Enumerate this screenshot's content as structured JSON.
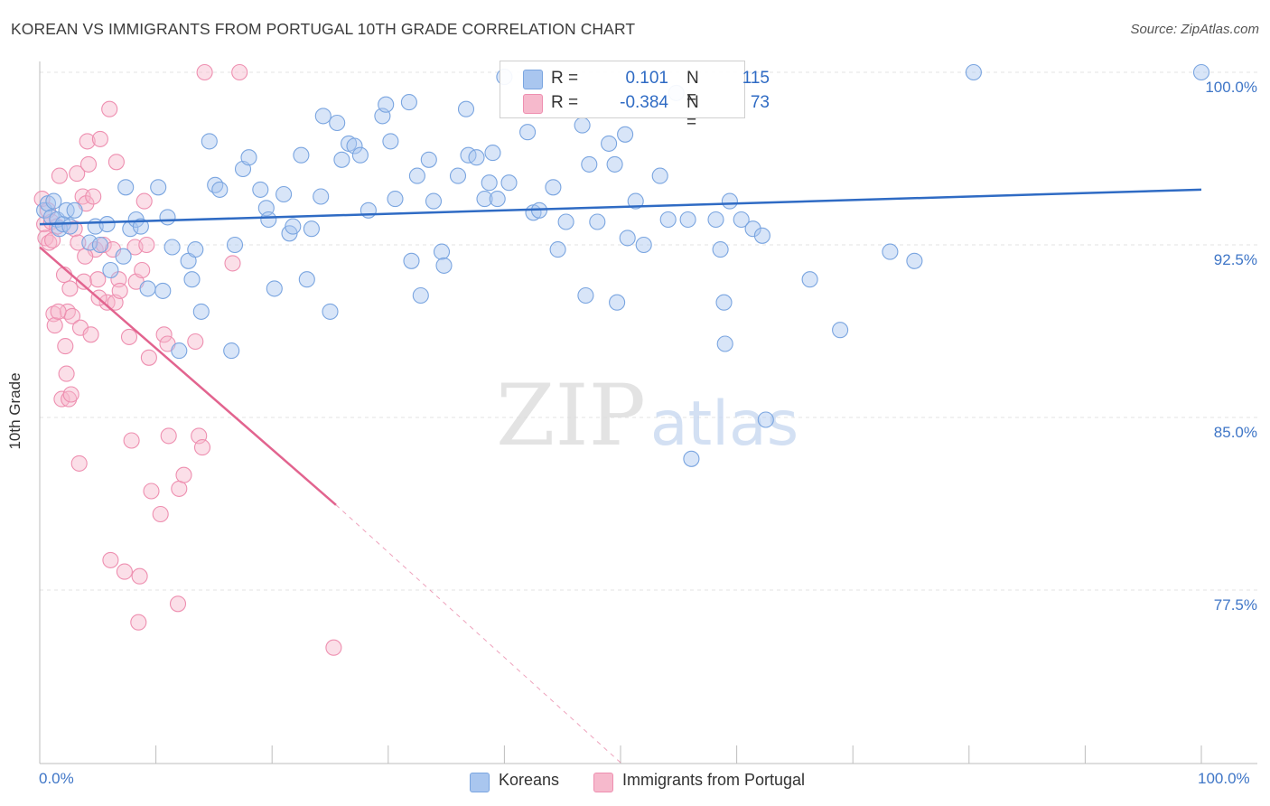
{
  "header": {
    "title": "KOREAN VS IMMIGRANTS FROM PORTUGAL 10TH GRADE CORRELATION CHART",
    "source": "Source: ZipAtlas.com"
  },
  "legend": {
    "rows": [
      {
        "r_label": "R =",
        "r_value": "0.101",
        "n_label": "N =",
        "n_value": "115",
        "color": "#a9c6ef"
      },
      {
        "r_label": "R =",
        "r_value": "-0.384",
        "n_label": "N =",
        "n_value": "73",
        "color": "#f6b9cc"
      }
    ]
  },
  "bottom_legend": [
    {
      "label": "Koreans",
      "color": "#a9c6ef"
    },
    {
      "label": "Immigrants from Portugal",
      "color": "#f6b9cc"
    }
  ],
  "watermark": {
    "part1": "ZIP",
    "part2": "atlas"
  },
  "chart_data": {
    "type": "scatter",
    "title": "KOREAN VS IMMIGRANTS FROM PORTUGAL 10TH GRADE CORRELATION CHART",
    "xlabel": "",
    "ylabel": "10th Grade",
    "xlim": [
      0,
      100
    ],
    "ylim": [
      70.0,
      100.0
    ],
    "x_tick_labels": [
      "0.0%",
      "100.0%"
    ],
    "y_ticks": [
      {
        "value": 100.0,
        "label": "100.0%"
      },
      {
        "value": 92.5,
        "label": "92.5%"
      },
      {
        "value": 85.0,
        "label": "85.0%"
      },
      {
        "value": 77.5,
        "label": "77.5%"
      }
    ],
    "grid": true,
    "legend_position": "top-center",
    "colors": {
      "koreans_fill": "#a9c6ef",
      "koreans_stroke": "#7aa5e0",
      "koreans_line": "#2f6bc4",
      "portugal_fill": "#f6b9cc",
      "portugal_stroke": "#ee8fb0",
      "portugal_line": "#e2648f"
    },
    "series": [
      {
        "name": "Koreans",
        "stats": {
          "R": 0.101,
          "N": 115
        },
        "trend": {
          "x": [
            0,
            100
          ],
          "y": [
            93.4,
            94.9
          ]
        },
        "points": [
          [
            0.4,
            94.0
          ],
          [
            0.7,
            94.3
          ],
          [
            1.0,
            93.7
          ],
          [
            1.2,
            94.4
          ],
          [
            1.5,
            93.6
          ],
          [
            1.7,
            93.2
          ],
          [
            2.0,
            93.4
          ],
          [
            2.3,
            94.0
          ],
          [
            2.6,
            93.3
          ],
          [
            3.0,
            94.0
          ],
          [
            4.3,
            92.6
          ],
          [
            4.8,
            93.3
          ],
          [
            5.2,
            92.5
          ],
          [
            5.8,
            93.4
          ],
          [
            6.1,
            91.4
          ],
          [
            7.2,
            92.0
          ],
          [
            7.8,
            93.2
          ],
          [
            8.3,
            93.6
          ],
          [
            8.7,
            93.3
          ],
          [
            9.3,
            90.6
          ],
          [
            10.2,
            95.0
          ],
          [
            10.6,
            90.5
          ],
          [
            11.0,
            93.7
          ],
          [
            11.4,
            92.4
          ],
          [
            12.0,
            87.9
          ],
          [
            12.8,
            91.8
          ],
          [
            13.1,
            91.0
          ],
          [
            13.4,
            92.3
          ],
          [
            13.9,
            89.6
          ],
          [
            14.6,
            97.0
          ],
          [
            15.1,
            95.1
          ],
          [
            15.5,
            94.9
          ],
          [
            16.5,
            87.9
          ],
          [
            16.8,
            92.5
          ],
          [
            17.5,
            95.8
          ],
          [
            18.0,
            96.3
          ],
          [
            19.0,
            94.9
          ],
          [
            19.5,
            94.1
          ],
          [
            19.7,
            93.6
          ],
          [
            20.2,
            90.6
          ],
          [
            21.0,
            94.7
          ],
          [
            21.5,
            93.0
          ],
          [
            21.8,
            93.3
          ],
          [
            22.5,
            96.4
          ],
          [
            23.0,
            91.0
          ],
          [
            23.4,
            93.2
          ],
          [
            24.2,
            94.6
          ],
          [
            24.4,
            98.1
          ],
          [
            25.0,
            89.6
          ],
          [
            25.6,
            97.8
          ],
          [
            26.0,
            96.2
          ],
          [
            26.6,
            96.9
          ],
          [
            27.1,
            96.8
          ],
          [
            27.6,
            96.4
          ],
          [
            28.3,
            94.0
          ],
          [
            29.5,
            98.1
          ],
          [
            29.8,
            98.6
          ],
          [
            30.2,
            97.0
          ],
          [
            30.6,
            94.5
          ],
          [
            31.8,
            98.7
          ],
          [
            32.0,
            91.8
          ],
          [
            32.5,
            95.5
          ],
          [
            32.8,
            90.3
          ],
          [
            33.5,
            96.2
          ],
          [
            33.9,
            94.4
          ],
          [
            34.6,
            92.2
          ],
          [
            34.8,
            91.6
          ],
          [
            36.0,
            95.5
          ],
          [
            36.7,
            98.4
          ],
          [
            36.9,
            96.4
          ],
          [
            37.6,
            96.3
          ],
          [
            38.3,
            94.5
          ],
          [
            38.7,
            95.2
          ],
          [
            39.0,
            96.5
          ],
          [
            39.4,
            94.5
          ],
          [
            40.0,
            99.8
          ],
          [
            40.4,
            95.2
          ],
          [
            42.0,
            97.4
          ],
          [
            42.5,
            93.9
          ],
          [
            43.0,
            94.0
          ],
          [
            44.2,
            95.0
          ],
          [
            45.3,
            93.5
          ],
          [
            46.7,
            97.7
          ],
          [
            47.0,
            90.3
          ],
          [
            47.3,
            96.0
          ],
          [
            48.0,
            93.5
          ],
          [
            49.0,
            96.9
          ],
          [
            49.5,
            96.0
          ],
          [
            49.7,
            90.0
          ],
          [
            50.4,
            97.3
          ],
          [
            50.6,
            92.8
          ],
          [
            51.3,
            94.4
          ],
          [
            52.0,
            92.5
          ],
          [
            53.4,
            95.5
          ],
          [
            54.1,
            93.6
          ],
          [
            54.8,
            99.1
          ],
          [
            55.8,
            93.6
          ],
          [
            58.2,
            93.6
          ],
          [
            58.6,
            92.3
          ],
          [
            58.9,
            90.0
          ],
          [
            59.0,
            88.2
          ],
          [
            59.4,
            94.4
          ],
          [
            60.4,
            93.6
          ],
          [
            61.4,
            93.2
          ],
          [
            62.2,
            92.9
          ],
          [
            62.5,
            84.9
          ],
          [
            66.3,
            91.0
          ],
          [
            68.9,
            88.8
          ],
          [
            73.2,
            92.2
          ],
          [
            75.3,
            91.8
          ],
          [
            100.0,
            100.0
          ],
          [
            80.4,
            100.0
          ],
          [
            56.1,
            83.2
          ],
          [
            44.6,
            92.3
          ],
          [
            7.4,
            95.0
          ]
        ]
      },
      {
        "name": "Immigrants from Portugal",
        "stats": {
          "R": -0.384,
          "N": 73
        },
        "trend": {
          "x": [
            0,
            25.5
          ],
          "y": [
            92.4,
            81.2
          ]
        },
        "trend_dashed": {
          "x": [
            25.5,
            50
          ],
          "y": [
            81.2,
            70.0
          ]
        },
        "points": [
          [
            0.2,
            94.5
          ],
          [
            0.4,
            93.4
          ],
          [
            0.5,
            92.8
          ],
          [
            0.7,
            94.0
          ],
          [
            0.8,
            92.6
          ],
          [
            1.0,
            93.5
          ],
          [
            1.1,
            92.7
          ],
          [
            1.2,
            89.5
          ],
          [
            1.3,
            89.0
          ],
          [
            1.5,
            93.3
          ],
          [
            1.7,
            95.5
          ],
          [
            1.9,
            85.8
          ],
          [
            2.1,
            91.2
          ],
          [
            2.2,
            88.1
          ],
          [
            2.3,
            86.9
          ],
          [
            2.4,
            89.6
          ],
          [
            2.5,
            85.8
          ],
          [
            2.6,
            90.6
          ],
          [
            2.8,
            89.4
          ],
          [
            3.0,
            93.2
          ],
          [
            3.2,
            95.6
          ],
          [
            3.3,
            92.6
          ],
          [
            3.4,
            83.0
          ],
          [
            3.5,
            88.9
          ],
          [
            3.7,
            94.6
          ],
          [
            3.8,
            90.9
          ],
          [
            4.0,
            94.3
          ],
          [
            4.1,
            97.0
          ],
          [
            4.2,
            96.0
          ],
          [
            4.4,
            88.6
          ],
          [
            4.6,
            94.6
          ],
          [
            4.8,
            92.3
          ],
          [
            5.0,
            91.0
          ],
          [
            5.2,
            97.1
          ],
          [
            5.5,
            92.5
          ],
          [
            5.8,
            90.0
          ],
          [
            6.0,
            98.4
          ],
          [
            6.1,
            78.8
          ],
          [
            6.3,
            92.3
          ],
          [
            6.5,
            90.0
          ],
          [
            6.6,
            96.1
          ],
          [
            6.8,
            91.0
          ],
          [
            6.9,
            90.5
          ],
          [
            7.3,
            78.3
          ],
          [
            7.7,
            88.5
          ],
          [
            7.9,
            84.0
          ],
          [
            8.2,
            92.4
          ],
          [
            8.3,
            90.9
          ],
          [
            8.5,
            76.1
          ],
          [
            8.6,
            78.1
          ],
          [
            8.8,
            91.4
          ],
          [
            9.0,
            94.4
          ],
          [
            9.2,
            92.5
          ],
          [
            9.4,
            87.6
          ],
          [
            9.6,
            81.8
          ],
          [
            10.4,
            80.8
          ],
          [
            10.7,
            88.6
          ],
          [
            11.0,
            88.2
          ],
          [
            11.1,
            84.2
          ],
          [
            11.9,
            76.9
          ],
          [
            12.0,
            81.9
          ],
          [
            12.4,
            82.5
          ],
          [
            13.4,
            88.3
          ],
          [
            13.7,
            84.2
          ],
          [
            14.0,
            83.7
          ],
          [
            14.2,
            100.0
          ],
          [
            16.6,
            91.7
          ],
          [
            17.2,
            100.0
          ],
          [
            25.3,
            75.0
          ],
          [
            2.7,
            86.0
          ],
          [
            1.6,
            89.6
          ],
          [
            5.1,
            90.2
          ],
          [
            3.9,
            92.0
          ]
        ]
      }
    ]
  }
}
